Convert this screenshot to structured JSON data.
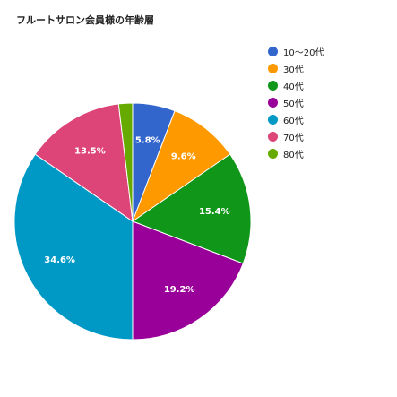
{
  "chart_data": {
    "type": "pie",
    "title": "フルートサロン会員様の年齢層",
    "legend_position": "top-right",
    "slices": [
      {
        "label": "10〜20代",
        "value": 5.8,
        "display": "5.8%",
        "color": "#3366CC"
      },
      {
        "label": "30代",
        "value": 9.6,
        "display": "9.6%",
        "color": "#FF9900"
      },
      {
        "label": "40代",
        "value": 15.4,
        "display": "15.4%",
        "color": "#109618"
      },
      {
        "label": "50代",
        "value": 19.2,
        "display": "19.2%",
        "color": "#990099"
      },
      {
        "label": "60代",
        "value": 34.6,
        "display": "34.6%",
        "color": "#0099C6"
      },
      {
        "label": "70代",
        "value": 13.5,
        "display": "13.5%",
        "color": "#DD4477"
      },
      {
        "label": "80代",
        "value": 1.9,
        "display": "",
        "color": "#66AA00"
      }
    ]
  }
}
